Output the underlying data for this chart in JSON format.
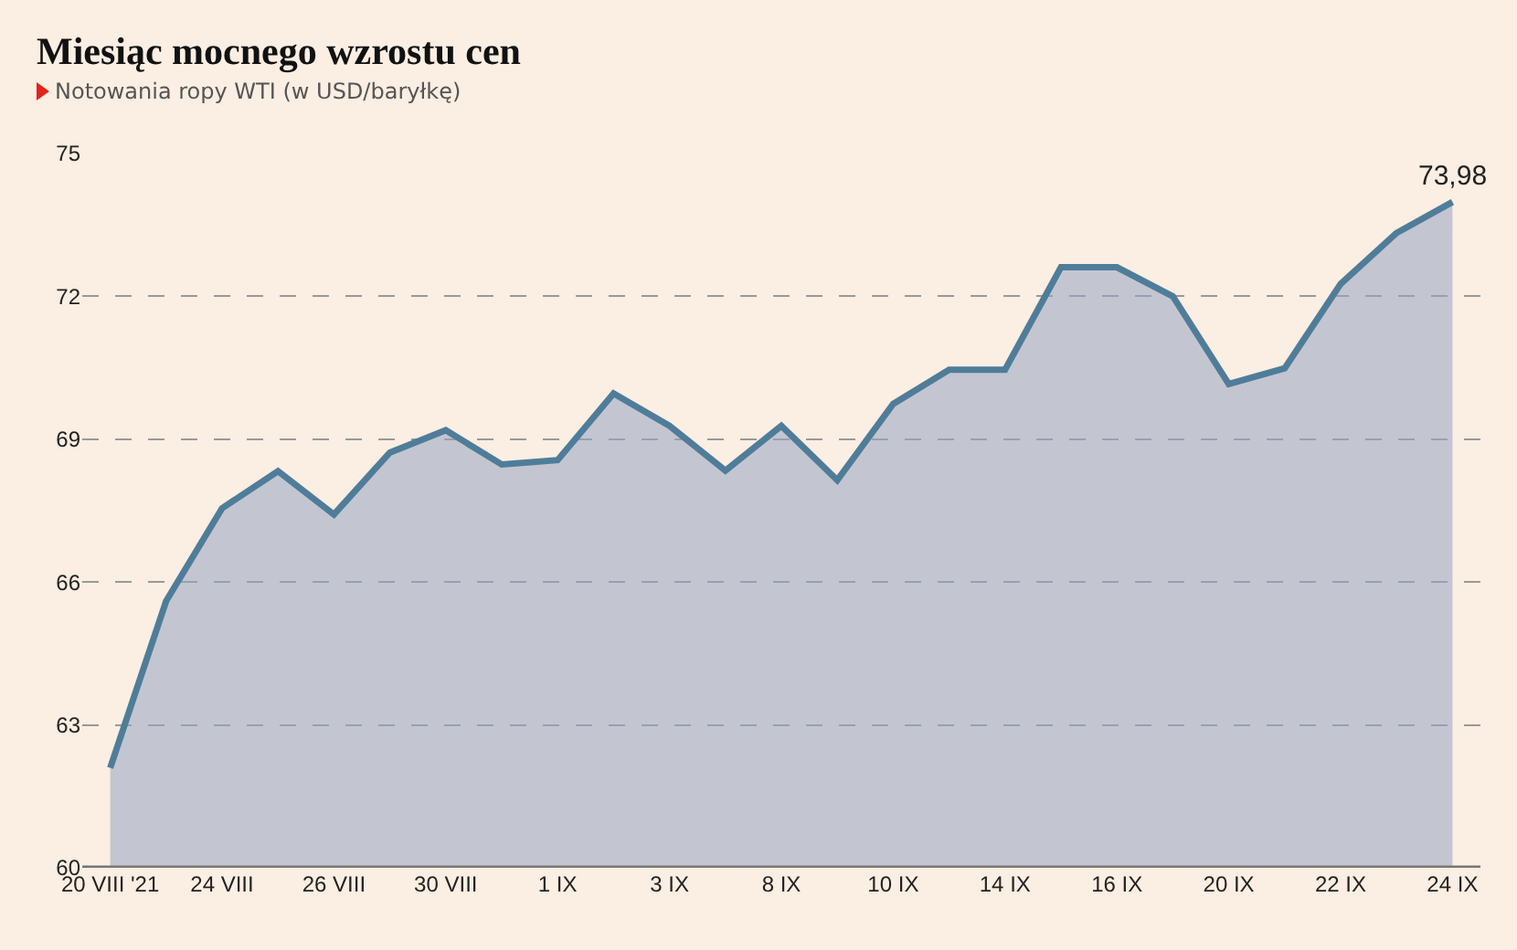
{
  "chart_data": {
    "type": "area",
    "title": "Miesiąc mocnego wzrostu cen",
    "subtitle": "Notowania ropy WTI (w USD/baryłkę)",
    "categories": [
      "20 VIII '21",
      null,
      "24 VIII",
      null,
      "26 VIII",
      null,
      "30 VIII",
      null,
      "1 IX",
      null,
      "3 IX",
      null,
      "8 IX",
      null,
      "10 IX",
      null,
      "14 IX",
      null,
      "16 IX",
      null,
      "20 IX",
      null,
      "22 IX",
      null,
      "24 IX"
    ],
    "series": [
      {
        "color": "#4f7d99",
        "values": [
          62.1,
          65.6,
          67.55,
          68.33,
          67.42,
          68.72,
          69.19,
          68.47,
          68.56,
          69.96,
          69.28,
          68.34,
          69.28,
          68.14,
          69.74,
          70.46,
          70.46,
          72.61,
          72.61,
          72.0,
          70.16,
          70.49,
          72.26,
          73.33,
          73.98
        ],
        "value_labels": [
          null,
          null,
          null,
          null,
          null,
          null,
          null,
          null,
          null,
          null,
          null,
          null,
          null,
          null,
          null,
          null,
          null,
          null,
          null,
          null,
          null,
          null,
          null,
          null,
          "73,98"
        ]
      }
    ],
    "ylim": [
      60,
      75
    ],
    "yticks": [
      60,
      63,
      66,
      69,
      72,
      75
    ],
    "grid": "y",
    "legend": false,
    "marker": "none",
    "line_style": "solid"
  }
}
